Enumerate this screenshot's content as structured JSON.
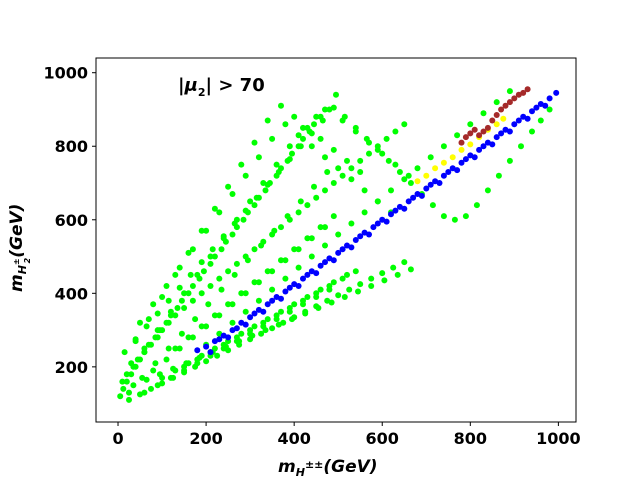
{
  "chart_data": {
    "type": "scatter",
    "title": "",
    "annotation": {
      "prefix": "|",
      "mu": "μ",
      "sub": "2",
      "suffix": "| > 70"
    },
    "xlabel": {
      "main": "m",
      "sub": "H",
      "sup": "±±",
      "unit": "(GeV)"
    },
    "ylabel": {
      "main": "m",
      "sub": "H",
      "subsup": "±",
      "subsub": "2",
      "unit": "(GeV)"
    },
    "xlim": [
      -50,
      1040
    ],
    "ylim": [
      50,
      1040
    ],
    "xticks": [
      0,
      200,
      400,
      600,
      800,
      1000
    ],
    "yticks": [
      200,
      400,
      600,
      800,
      1000
    ],
    "grid": false,
    "legend": "none",
    "series": [
      {
        "color": "#00ff00",
        "x": [
          5,
          12,
          20,
          30,
          40,
          50,
          60,
          75,
          90,
          100,
          115,
          130,
          150,
          170,
          190,
          210,
          230,
          250,
          270,
          290,
          310,
          330,
          350,
          370,
          390,
          410,
          430,
          450,
          470,
          490,
          510,
          530,
          550,
          570,
          590,
          610,
          630,
          650,
          30,
          60,
          90,
          120,
          150,
          180,
          210,
          240,
          270,
          300,
          330,
          360,
          390,
          420,
          450,
          480,
          510,
          540,
          570,
          600,
          630,
          660,
          50,
          80,
          110,
          140,
          170,
          200,
          230,
          260,
          290,
          320,
          350,
          380,
          410,
          440,
          470,
          500,
          530,
          560,
          590,
          620,
          40,
          70,
          100,
          130,
          160,
          190,
          220,
          250,
          280,
          310,
          340,
          370,
          400,
          430,
          460,
          490,
          520,
          550,
          20,
          45,
          70,
          95,
          120,
          145,
          170,
          195,
          220,
          245,
          270,
          295,
          320,
          345,
          370,
          395,
          420,
          445,
          470,
          495,
          25,
          55,
          85,
          115,
          145,
          175,
          205,
          235,
          265,
          295,
          325,
          355,
          385,
          415,
          445,
          475,
          10,
          35,
          60,
          85,
          110,
          135,
          160,
          185,
          210,
          235,
          260,
          285,
          310,
          335,
          360,
          385,
          410,
          435,
          460,
          100,
          130,
          160,
          190,
          220,
          250,
          280,
          310,
          340,
          370,
          400,
          430,
          460,
          490,
          520,
          60,
          90,
          120,
          150,
          180,
          210,
          240,
          270,
          300,
          330,
          360,
          390,
          420,
          450,
          480,
          80,
          110,
          140,
          170,
          200,
          230,
          260,
          290,
          320,
          350,
          380,
          410,
          440,
          470,
          150,
          180,
          210,
          240,
          270,
          300,
          330,
          360,
          390,
          420,
          450,
          480,
          510,
          540,
          130,
          160,
          190,
          220,
          250,
          280,
          310,
          340,
          370,
          400,
          430,
          460,
          490,
          200,
          230,
          260,
          290,
          320,
          350,
          380,
          410,
          440,
          470,
          500,
          530,
          560,
          590,
          620,
          650,
          680,
          710,
          740,
          770,
          800,
          830,
          860,
          890,
          25,
          50,
          75,
          100,
          125,
          150,
          175,
          200,
          225,
          250,
          275,
          300,
          325,
          350,
          375,
          400,
          425,
          450,
          475,
          500,
          525,
          550,
          575,
          600,
          625,
          650,
          35,
          65,
          95,
          125,
          155,
          185,
          215,
          245,
          275,
          305,
          335,
          365,
          395,
          425,
          455,
          485,
          515,
          545,
          575,
          605,
          635,
          665,
          15,
          40,
          65,
          90,
          115,
          140,
          165,
          190,
          215,
          240,
          265,
          290,
          315,
          340,
          365,
          390,
          415,
          440,
          465,
          490,
          515,
          540,
          565,
          590,
          615,
          640,
          665,
          690,
          715,
          740,
          765,
          790,
          815,
          840,
          865,
          890,
          915,
          940,
          960,
          980
        ],
        "y": [
          120,
          140,
          160,
          180,
          200,
          220,
          240,
          260,
          280,
          300,
          320,
          340,
          360,
          380,
          400,
          420,
          440,
          460,
          480,
          500,
          520,
          540,
          560,
          580,
          600,
          620,
          640,
          660,
          680,
          700,
          720,
          740,
          760,
          780,
          800,
          820,
          840,
          860,
          210,
          250,
          300,
          350,
          400,
          450,
          500,
          550,
          600,
          650,
          700,
          750,
          800,
          850,
          880,
          900,
          870,
          840,
          810,
          780,
          750,
          720,
          320,
          370,
          420,
          470,
          520,
          570,
          620,
          670,
          720,
          770,
          820,
          860,
          830,
          800,
          770,
          740,
          710,
          680,
          650,
          620,
          270,
          330,
          390,
          450,
          510,
          570,
          630,
          690,
          750,
          810,
          870,
          910,
          880,
          850,
          820,
          790,
          760,
          730,
          180,
          220,
          260,
          300,
          340,
          380,
          420,
          460,
          500,
          540,
          580,
          620,
          660,
          700,
          740,
          780,
          820,
          860,
          900,
          940,
          130,
          170,
          210,
          250,
          290,
          330,
          370,
          410,
          450,
          490,
          530,
          570,
          610,
          650,
          690,
          730,
          160,
          200,
          240,
          280,
          320,
          360,
          400,
          440,
          480,
          520,
          560,
          600,
          640,
          680,
          720,
          760,
          800,
          840,
          880,
          170,
          190,
          210,
          230,
          250,
          270,
          290,
          310,
          330,
          350,
          370,
          390,
          410,
          430,
          450,
          130,
          150,
          170,
          190,
          210,
          230,
          250,
          270,
          290,
          310,
          330,
          350,
          370,
          390,
          410,
          190,
          220,
          250,
          280,
          310,
          340,
          370,
          400,
          430,
          460,
          490,
          520,
          550,
          580,
          200,
          220,
          240,
          260,
          280,
          300,
          320,
          340,
          360,
          380,
          400,
          420,
          440,
          460,
          250,
          280,
          310,
          340,
          370,
          400,
          430,
          460,
          490,
          520,
          550,
          580,
          610,
          260,
          290,
          320,
          350,
          380,
          410,
          440,
          470,
          500,
          530,
          560,
          590,
          620,
          650,
          680,
          710,
          740,
          770,
          800,
          830,
          860,
          890,
          920,
          950,
          110,
          125,
          140,
          155,
          170,
          185,
          200,
          215,
          230,
          245,
          260,
          275,
          290,
          305,
          320,
          335,
          350,
          365,
          380,
          395,
          410,
          425,
          440,
          455,
          470,
          485,
          150,
          165,
          180,
          195,
          210,
          225,
          240,
          255,
          270,
          285,
          300,
          315,
          330,
          345,
          360,
          375,
          390,
          405,
          420,
          435,
          450,
          465,
          240,
          275,
          310,
          345,
          380,
          415,
          450,
          485,
          520,
          555,
          590,
          625,
          660,
          695,
          730,
          765,
          800,
          835,
          870,
          905,
          880,
          850,
          820,
          790,
          760,
          730,
          700,
          670,
          640,
          610,
          600,
          610,
          640,
          680,
          720,
          760,
          800,
          840,
          870,
          900
        ]
      },
      {
        "color": "#0000ff",
        "x": [
          180,
          200,
          220,
          240,
          260,
          280,
          300,
          320,
          340,
          360,
          380,
          400,
          420,
          440,
          460,
          480,
          500,
          520,
          540,
          560,
          580,
          600,
          620,
          640,
          660,
          680,
          700,
          720,
          740,
          760,
          780,
          800,
          820,
          840,
          860,
          880,
          900,
          920,
          940,
          960,
          980,
          995,
          210,
          250,
          290,
          330,
          370,
          410,
          450,
          490,
          530,
          570,
          610,
          650,
          690,
          730,
          770,
          810,
          850,
          890,
          930,
          970,
          230,
          270,
          310,
          350,
          390,
          430,
          470,
          510,
          550,
          590,
          630,
          670,
          710,
          750,
          790,
          830,
          870,
          910,
          950
        ],
        "y": [
          245,
          255,
          270,
          285,
          300,
          320,
          335,
          355,
          370,
          390,
          405,
          425,
          440,
          460,
          475,
          495,
          510,
          530,
          545,
          565,
          580,
          600,
          615,
          635,
          650,
          670,
          685,
          705,
          720,
          740,
          755,
          775,
          790,
          810,
          825,
          845,
          860,
          880,
          895,
          915,
          930,
          945,
          240,
          280,
          315,
          350,
          385,
          420,
          455,
          490,
          525,
          560,
          595,
          630,
          665,
          700,
          735,
          770,
          805,
          840,
          875,
          910,
          275,
          305,
          345,
          380,
          415,
          450,
          485,
          520,
          555,
          590,
          625,
          660,
          695,
          730,
          765,
          800,
          835,
          870,
          905
        ]
      },
      {
        "color": "#ffff00",
        "x": [
          680,
          700,
          720,
          740,
          760,
          780,
          800,
          820,
          840,
          860,
          875
        ],
        "y": [
          705,
          720,
          740,
          755,
          770,
          790,
          805,
          825,
          845,
          860,
          875
        ]
      },
      {
        "color": "#a52a2a",
        "x": [
          780,
          790,
          800,
          810,
          820,
          830,
          840,
          850,
          860,
          870,
          880,
          890,
          900,
          910,
          920,
          930
        ],
        "y": [
          810,
          825,
          835,
          845,
          830,
          840,
          850,
          870,
          885,
          900,
          910,
          920,
          930,
          940,
          945,
          955
        ]
      }
    ]
  }
}
